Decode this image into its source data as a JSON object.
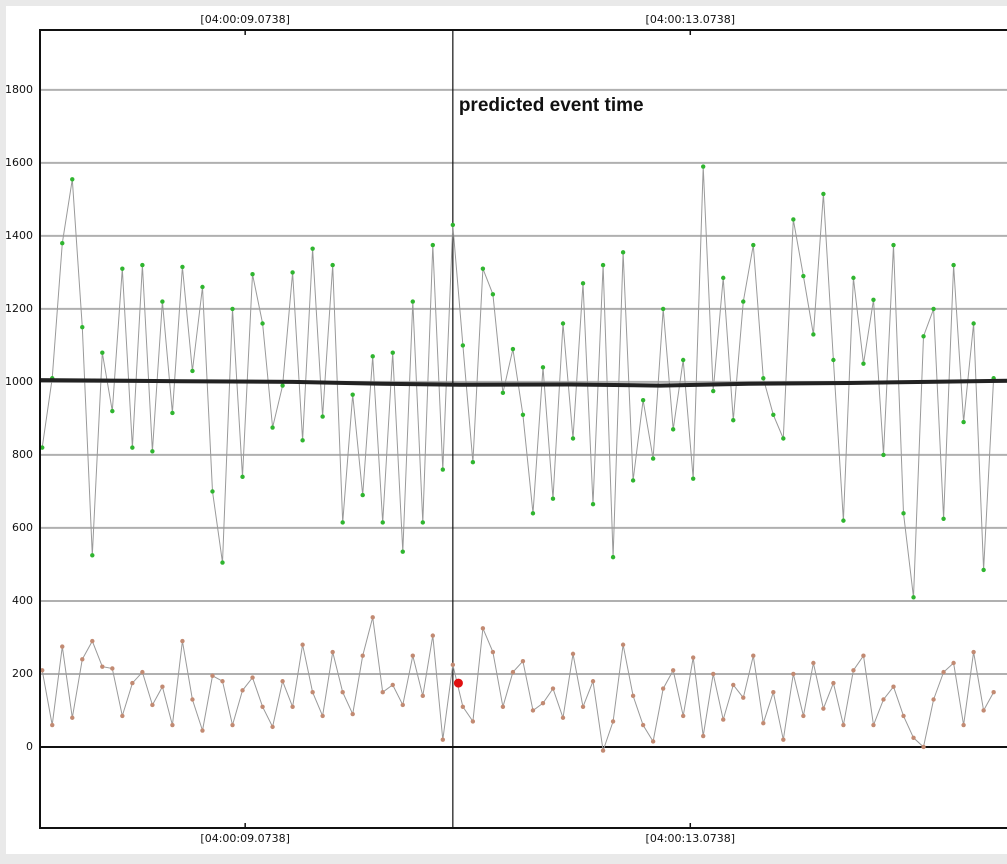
{
  "chart_data": {
    "type": "line",
    "xlim": [
      7.23,
      15.92
    ],
    "ylim": [
      -222,
      1964
    ],
    "xticks": [
      {
        "value": 9.0738,
        "label": "[04:00:09.0738]"
      },
      {
        "value": 13.0738,
        "label": "[04:00:13.0738]"
      }
    ],
    "yticks": [
      0,
      200,
      400,
      600,
      800,
      1000,
      1200,
      1400,
      1600,
      1800
    ],
    "grid": true,
    "x": [
      7.25,
      7.34,
      7.43,
      7.52,
      7.61,
      7.7,
      7.79,
      7.88,
      7.97,
      8.06,
      8.15,
      8.24,
      8.33,
      8.42,
      8.51,
      8.6,
      8.69,
      8.78,
      8.87,
      8.96,
      9.05,
      9.14,
      9.23,
      9.32,
      9.41,
      9.5,
      9.59,
      9.68,
      9.77,
      9.86,
      9.95,
      10.04,
      10.13,
      10.22,
      10.31,
      10.4,
      10.49,
      10.58,
      10.67,
      10.76,
      10.85,
      10.94,
      11.03,
      11.12,
      11.21,
      11.3,
      11.39,
      11.48,
      11.57,
      11.66,
      11.75,
      11.84,
      11.93,
      12.02,
      12.11,
      12.2,
      12.29,
      12.38,
      12.47,
      12.56,
      12.65,
      12.74,
      12.83,
      12.92,
      13.01,
      13.1,
      13.19,
      13.28,
      13.37,
      13.46,
      13.55,
      13.64,
      13.73,
      13.82,
      13.91,
      14.0,
      14.09,
      14.18,
      14.27,
      14.36,
      14.45,
      14.54,
      14.63,
      14.72,
      14.81,
      14.9,
      14.99,
      15.08,
      15.17,
      15.26,
      15.35,
      15.44,
      15.53,
      15.62,
      15.71,
      15.8
    ],
    "series": [
      {
        "color": "#2fb52f",
        "line_color": "#9a9a9a",
        "marker": "dot",
        "values": [
          820,
          1010,
          1380,
          1555,
          1150,
          525,
          1080,
          920,
          1310,
          820,
          1320,
          810,
          1220,
          915,
          1315,
          1030,
          1260,
          700,
          505,
          1200,
          740,
          1295,
          1160,
          875,
          990,
          1300,
          840,
          1365,
          905,
          1320,
          615,
          965,
          690,
          1070,
          615,
          1080,
          535,
          1220,
          615,
          1375,
          760,
          1430,
          1100,
          780,
          1310,
          1240,
          970,
          1090,
          910,
          640,
          1040,
          680,
          1160,
          845,
          1270,
          665,
          1320,
          520,
          1355,
          730,
          950,
          790,
          1200,
          870,
          1060,
          735,
          1590,
          975,
          1285,
          895,
          1220,
          1375,
          1010,
          910,
          845,
          1445,
          1290,
          1130,
          1515,
          1060,
          620,
          1285,
          1050,
          1225,
          800,
          1375,
          640,
          410,
          1125,
          1200,
          625,
          1320,
          890,
          1160,
          485,
          1010
        ]
      },
      {
        "color": "#c28a72",
        "line_color": "#9a9a9a",
        "marker": "dot",
        "values": [
          210,
          60,
          275,
          80,
          240,
          290,
          220,
          215,
          85,
          175,
          205,
          115,
          165,
          60,
          290,
          130,
          45,
          195,
          180,
          60,
          155,
          190,
          110,
          55,
          180,
          110,
          280,
          150,
          85,
          260,
          150,
          90,
          250,
          355,
          150,
          170,
          115,
          250,
          140,
          305,
          20,
          225,
          110,
          70,
          325,
          260,
          110,
          205,
          235,
          100,
          120,
          160,
          80,
          255,
          110,
          180,
          -10,
          70,
          280,
          140,
          60,
          15,
          160,
          210,
          85,
          245,
          30,
          200,
          75,
          170,
          135,
          250,
          65,
          150,
          20,
          200,
          85,
          230,
          105,
          175,
          60,
          210,
          250,
          60,
          130,
          165,
          85,
          25,
          0,
          130,
          205,
          230,
          60,
          260,
          100,
          150
        ]
      },
      {
        "color": "#222222",
        "line_width": 4,
        "marker": "none",
        "x": [
          7.23,
          8.5,
          9.5,
          10.3,
          11.0,
          12.0,
          12.8,
          13.6,
          14.5,
          15.2,
          15.92
        ],
        "values": [
          1005,
          1002,
          1000,
          995,
          992,
          993,
          990,
          995,
          997,
          1000,
          1003
        ]
      },
      {
        "color": "#e01010",
        "marker": "big-dot",
        "x": [
          10.99
        ],
        "values": [
          175
        ]
      }
    ],
    "annotation": {
      "x": 10.94,
      "text": "predicted event time"
    }
  }
}
